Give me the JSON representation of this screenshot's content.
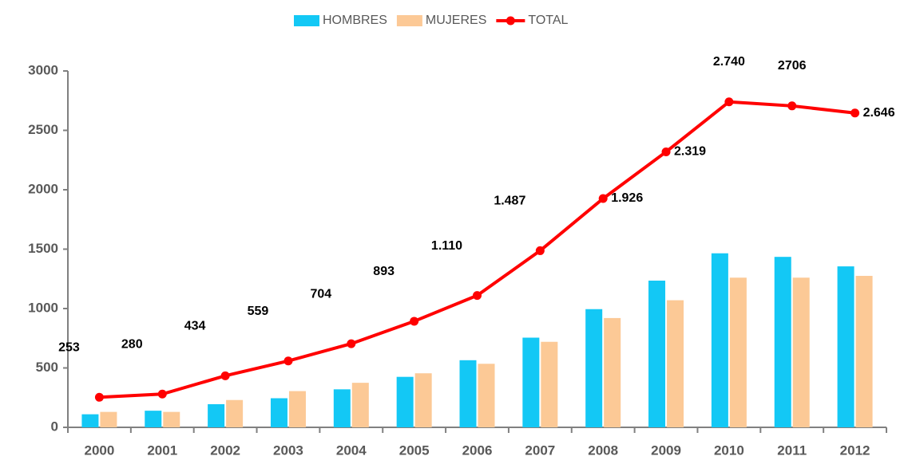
{
  "chart_data": {
    "type": "bar_line",
    "categories": [
      "2000",
      "2001",
      "2002",
      "2003",
      "2004",
      "2005",
      "2006",
      "2007",
      "2008",
      "2009",
      "2010",
      "2011",
      "2012"
    ],
    "series": [
      {
        "name": "HOMBRES",
        "color": "#13c8f5",
        "type": "bar",
        "values": [
          110,
          140,
          195,
          245,
          320,
          425,
          565,
          755,
          995,
          1235,
          1465,
          1435,
          1355
        ]
      },
      {
        "name": "MUJERES",
        "color": "#fcc996",
        "type": "bar",
        "values": [
          130,
          130,
          230,
          305,
          375,
          455,
          535,
          720,
          920,
          1070,
          1260,
          1260,
          1275
        ]
      },
      {
        "name": "TOTAL",
        "color": "#ff0000",
        "type": "line",
        "values": [
          253,
          280,
          434,
          559,
          704,
          893,
          1110,
          1487,
          1926,
          2319,
          2740,
          2706,
          2646
        ],
        "value_labels": [
          "253",
          "280",
          "434",
          "559",
          "704",
          "893",
          "1.110",
          "1.487",
          "1.926",
          "2.319",
          "2.740",
          "2706",
          "2.646"
        ]
      }
    ],
    "ylim": [
      0,
      3000
    ],
    "yticks": [
      0,
      500,
      1000,
      1500,
      2000,
      2500,
      3000
    ],
    "legend": "top"
  }
}
